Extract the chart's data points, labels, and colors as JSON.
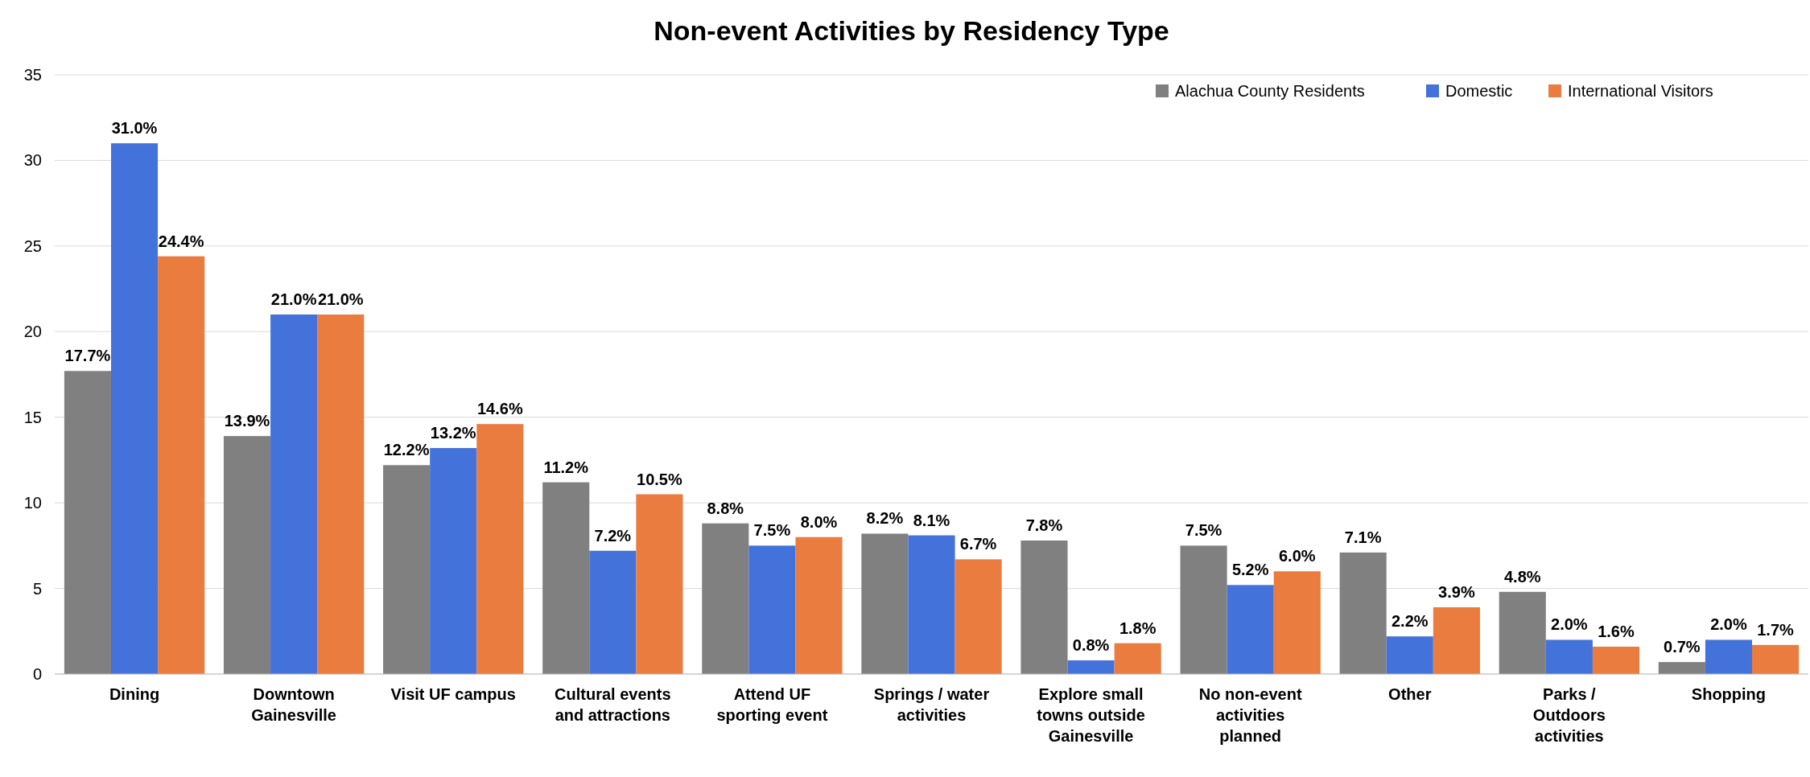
{
  "chart_data": {
    "type": "bar",
    "title": "Non-event Activities by Residency Type",
    "categories": [
      "Dining",
      "Downtown Gainesville",
      "Visit UF campus",
      "Cultural events and attractions",
      "Attend UF sporting event",
      "Springs / water activities",
      "Explore small towns outside Gainesville",
      "No non-event activities planned",
      "Other",
      "Parks / Outdoors activities",
      "Shopping"
    ],
    "series": [
      {
        "name": "Alachua County Residents",
        "color": "#808080",
        "values": [
          17.7,
          13.9,
          12.2,
          11.2,
          8.8,
          8.2,
          7.8,
          7.5,
          7.1,
          4.8,
          0.7
        ],
        "value_labels": [
          "17.7%",
          "13.9%",
          "12.2%",
          "11.2%",
          "8.8%",
          "8.2%",
          "7.8%",
          "7.5%",
          "7.1%",
          "4.8%",
          "0.7%"
        ]
      },
      {
        "name": "Domestic",
        "color": "#4472db",
        "values": [
          31.0,
          21.0,
          13.2,
          7.2,
          7.5,
          8.1,
          0.8,
          5.2,
          2.2,
          2.0,
          2.0
        ],
        "value_labels": [
          "31.0%",
          "21.0%",
          "13.2%",
          "7.2%",
          "7.5%",
          "8.1%",
          "0.8%",
          "5.2%",
          "2.2%",
          "2.0%",
          "2.0%"
        ]
      },
      {
        "name": "International Visitors",
        "color": "#e97c3e",
        "values": [
          24.4,
          21.0,
          14.6,
          10.5,
          8.0,
          6.7,
          1.8,
          6.0,
          3.9,
          1.6,
          1.7
        ],
        "value_labels": [
          "24.4%",
          "21.0%",
          "14.6%",
          "10.5%",
          "8.0%",
          "6.7%",
          "1.8%",
          "6.0%",
          "3.9%",
          "1.6%",
          "1.7%"
        ]
      }
    ],
    "ylim": [
      0,
      35
    ],
    "yticks": [
      0,
      5,
      10,
      15,
      20,
      25,
      30,
      35
    ],
    "grid": "y",
    "legend": "top right"
  }
}
